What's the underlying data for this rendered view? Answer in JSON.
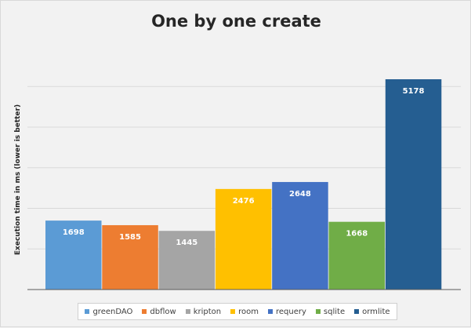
{
  "chart_data": {
    "type": "bar",
    "title": "One by one create",
    "ylabel": "Execution time in ms (lower is better)",
    "xlabel": "",
    "ylim": [
      0,
      5200
    ],
    "grid": true,
    "legend_position": "bottom",
    "series": [
      {
        "name": "greenDAO",
        "value": 1698,
        "color": "#5b9bd5"
      },
      {
        "name": "dbflow",
        "value": 1585,
        "color": "#ed7d31"
      },
      {
        "name": "kripton",
        "value": 1445,
        "color": "#a5a5a5"
      },
      {
        "name": "room",
        "value": 2476,
        "color": "#ffc000"
      },
      {
        "name": "requery",
        "value": 2648,
        "color": "#4472c4"
      },
      {
        "name": "sqlite",
        "value": 1668,
        "color": "#70ad47"
      },
      {
        "name": "ormlite",
        "value": 5178,
        "color": "#255e91"
      }
    ]
  }
}
